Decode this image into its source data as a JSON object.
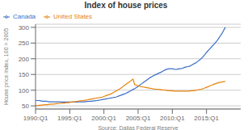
{
  "chart_data": {
    "type": "line",
    "title": "Index of house prices",
    "x_label": "Source: Dallas Federal Reserve",
    "y_label": "House price index, 100 = 2005",
    "x": [
      1990,
      1990.25,
      1990.5,
      1990.75,
      1991,
      1991.25,
      1991.5,
      1991.75,
      1992,
      1992.25,
      1992.5,
      1992.75,
      1993,
      1993.25,
      1993.5,
      1993.75,
      1994,
      1994.25,
      1994.5,
      1994.75,
      1995,
      1995.25,
      1995.5,
      1995.75,
      1996,
      1996.25,
      1996.5,
      1996.75,
      1997,
      1997.25,
      1997.5,
      1997.75,
      1998,
      1998.25,
      1998.5,
      1998.75,
      1999,
      1999.25,
      1999.5,
      1999.75,
      2000,
      2000.25,
      2000.5,
      2000.75,
      2001,
      2001.25,
      2001.5,
      2001.75,
      2002,
      2002.25,
      2002.5,
      2002.75,
      2003,
      2003.25,
      2003.5,
      2003.75,
      2004,
      2004.25,
      2004.5,
      2004.75,
      2005,
      2005.25,
      2005.5,
      2005.75,
      2006,
      2006.25,
      2006.5,
      2006.75,
      2007,
      2007.25,
      2007.5,
      2007.75,
      2008,
      2008.25,
      2008.5,
      2008.75,
      2009,
      2009.25,
      2009.5,
      2009.75,
      2010,
      2010.25,
      2010.5,
      2010.75,
      2011,
      2011.25,
      2011.5,
      2011.75,
      2012,
      2012.25,
      2012.5,
      2012.75,
      2013,
      2013.25,
      2013.5,
      2013.75,
      2014,
      2014.25,
      2014.5,
      2014.75,
      2015,
      2015.25,
      2015.5,
      2015.75,
      2016,
      2016.25,
      2016.5,
      2016.75,
      2017,
      2017.25,
      2017.5,
      2017.75
    ],
    "series": [
      {
        "name": "Canada",
        "color": "#3A6DC8",
        "values": [
          67,
          67,
          67,
          66,
          65,
          65,
          65,
          64,
          63,
          63,
          63,
          63,
          63,
          63,
          63,
          62,
          62,
          62,
          62,
          62,
          62,
          62,
          62,
          62,
          62,
          63,
          63,
          63,
          63,
          63,
          64,
          64,
          65,
          65,
          66,
          66,
          67,
          68,
          69,
          70,
          71,
          72,
          73,
          74,
          75,
          76,
          77,
          78,
          80,
          82,
          84,
          86,
          88,
          90,
          93,
          96,
          99,
          102,
          105,
          108,
          112,
          116,
          120,
          124,
          128,
          132,
          136,
          140,
          143,
          146,
          149,
          151,
          154,
          156,
          159,
          162,
          165,
          167,
          168,
          168,
          168,
          167,
          166,
          167,
          168,
          168,
          170,
          172,
          174,
          175,
          176,
          179,
          182,
          185,
          188,
          192,
          196,
          201,
          207,
          213,
          220,
          226,
          232,
          238,
          244,
          250,
          256,
          264,
          272,
          280,
          290,
          300
        ]
      },
      {
        "name": "United States",
        "color": "#E8820A",
        "values": [
          50,
          51,
          52,
          52,
          53,
          53,
          54,
          54,
          55,
          55,
          56,
          56,
          57,
          57,
          58,
          58,
          59,
          59,
          60,
          60,
          61,
          62,
          63,
          63,
          64,
          65,
          66,
          66,
          67,
          68,
          69,
          70,
          71,
          72,
          73,
          74,
          75,
          76,
          77,
          78,
          80,
          82,
          84,
          86,
          88,
          91,
          94,
          97,
          100,
          103,
          107,
          111,
          115,
          119,
          123,
          127,
          131,
          135,
          118,
          116,
          114,
          112,
          111,
          110,
          109,
          108,
          107,
          106,
          105,
          104,
          103,
          103,
          103,
          102,
          101,
          101,
          100,
          99,
          99,
          98,
          98,
          97,
          97,
          97,
          97,
          97,
          97,
          97,
          97,
          97,
          97,
          98,
          98,
          99,
          100,
          101,
          102,
          103,
          105,
          107,
          109,
          111,
          114,
          116,
          118,
          120,
          122,
          124,
          125,
          126,
          127,
          128
        ]
      }
    ],
    "xlim": [
      1990,
      2020
    ],
    "xticks": [
      {
        "value": 1990,
        "label": "1990:Q1"
      },
      {
        "value": 1995,
        "label": "1995:Q1"
      },
      {
        "value": 2000,
        "label": "2000:Q1"
      },
      {
        "value": 2005,
        "label": "2005:Q1"
      },
      {
        "value": 2010,
        "label": "2010:Q1"
      },
      {
        "value": 2015,
        "label": "2015:Q1"
      }
    ],
    "ylim": [
      40,
      310
    ],
    "yticks": [
      50,
      100,
      150,
      200,
      250,
      300
    ],
    "grid": true,
    "legend": "upper left"
  }
}
